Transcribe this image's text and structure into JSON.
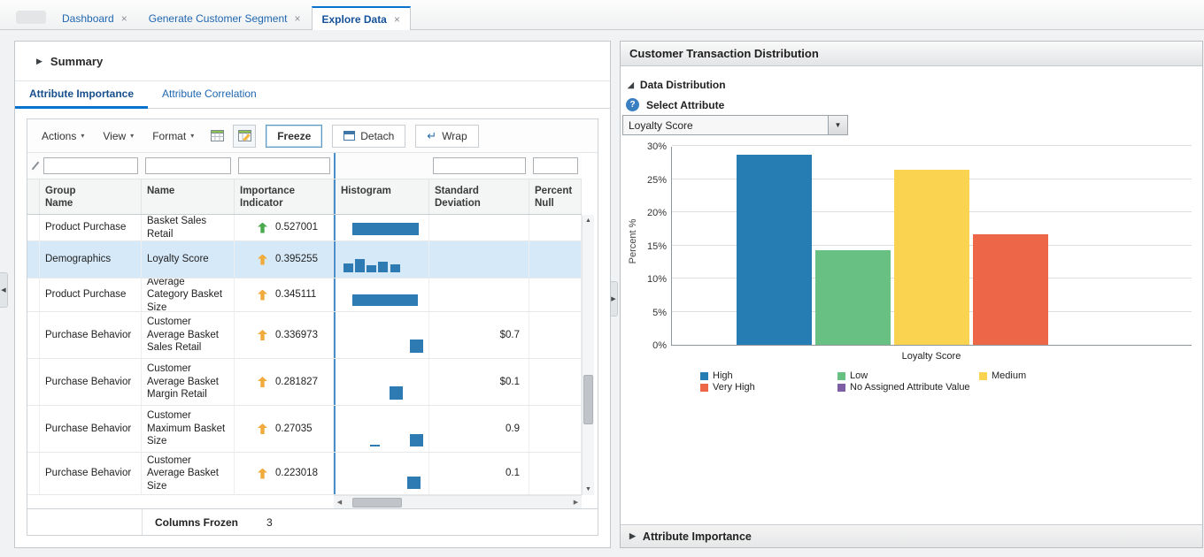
{
  "window_tabs": [
    {
      "label": "Dashboard",
      "active": false
    },
    {
      "label": "Generate Customer Segment",
      "active": false
    },
    {
      "label": "Explore Data",
      "active": true
    }
  ],
  "left_panel": {
    "summary_label": "Summary",
    "subtabs": [
      {
        "label": "Attribute Importance",
        "active": true
      },
      {
        "label": "Attribute Correlation",
        "active": false
      }
    ],
    "toolbar": {
      "actions_label": "Actions",
      "view_label": "View",
      "format_label": "Format",
      "freeze_label": "Freeze",
      "detach_label": "Detach",
      "wrap_label": "Wrap"
    },
    "table": {
      "columns": [
        "Group\nName",
        "Name",
        "Importance\nIndicator",
        "Histogram",
        "Standard\nDeviation",
        "Percent\nNull"
      ],
      "rows": [
        {
          "group": "Product Purchase",
          "name": "Basket Sales Retail",
          "importance": "0.527001",
          "indicator_color": "#4BA94E",
          "histogram": [
            [
              19,
              75,
              14
            ]
          ],
          "std_dev": "",
          "percent_null": "",
          "selected": false
        },
        {
          "group": "Demographics",
          "name": "Loyalty Score",
          "importance": "0.395255",
          "indicator_color": "#F0AB3C",
          "histogram": [
            [
              9,
              11,
              10
            ],
            [
              22,
              11,
              15
            ],
            [
              35,
              11,
              8
            ],
            [
              48,
              11,
              12
            ],
            [
              62,
              11,
              9
            ]
          ],
          "std_dev": "",
          "percent_null": "",
          "selected": true
        },
        {
          "group": "Product Purchase",
          "name": "Average Category Basket Size",
          "importance": "0.345111",
          "indicator_color": "#F0AB3C",
          "histogram": [
            [
              19,
              74,
              13
            ]
          ],
          "std_dev": "",
          "percent_null": "",
          "selected": false
        },
        {
          "group": "Purchase Behavior",
          "name": "Customer Average Basket Sales Retail",
          "importance": "0.336973",
          "indicator_color": "#F0AB3C",
          "histogram": [
            [
              84,
              15,
              15
            ]
          ],
          "std_dev": "$0.7",
          "percent_null": "",
          "selected": false
        },
        {
          "group": "Purchase Behavior",
          "name": "Customer Average Basket Margin Retail",
          "importance": "0.281827",
          "indicator_color": "#F0AB3C",
          "histogram": [
            [
              61,
              15,
              15
            ]
          ],
          "std_dev": "$0.1",
          "percent_null": "",
          "selected": false
        },
        {
          "group": "Purchase Behavior",
          "name": "Customer Maximum Basket Size",
          "importance": "0.27035",
          "indicator_color": "#F0AB3C",
          "histogram": [
            [
              39,
              11,
              2
            ],
            [
              84,
              15,
              14
            ]
          ],
          "std_dev": "0.9",
          "percent_null": "",
          "selected": false
        },
        {
          "group": "Purchase Behavior",
          "name": "Customer Average Basket Size",
          "importance": "0.223018",
          "indicator_color": "#F0AB3C",
          "histogram": [
            [
              81,
              15,
              14
            ]
          ],
          "std_dev": "0.1",
          "percent_null": "",
          "selected": false
        }
      ]
    },
    "status": {
      "label": "Columns Frozen",
      "value": "3"
    }
  },
  "right_panel": {
    "title": "Customer Transaction Distribution",
    "data_distribution_label": "Data Distribution",
    "select_attribute_label": "Select Attribute",
    "selected_attribute": "Loyalty Score",
    "attribute_importance_label": "Attribute Importance"
  },
  "chart_data": {
    "type": "bar",
    "title": "Customer Transaction Distribution",
    "categories": [
      "High",
      "Low",
      "Medium",
      "Very High",
      "No Assigned Attribute Value"
    ],
    "values": [
      28.7,
      14.3,
      26.4,
      16.7,
      0
    ],
    "colors": [
      "#267DB3",
      "#68C182",
      "#FAD350",
      "#ED6647",
      "#7E5FA5"
    ],
    "xlabel": "Loyalty Score",
    "ylabel": "Percent %",
    "ylim": [
      0,
      30
    ],
    "ytick_step": 5,
    "ytick_suffix": "%",
    "grid": true,
    "legend_position": "bottom"
  }
}
